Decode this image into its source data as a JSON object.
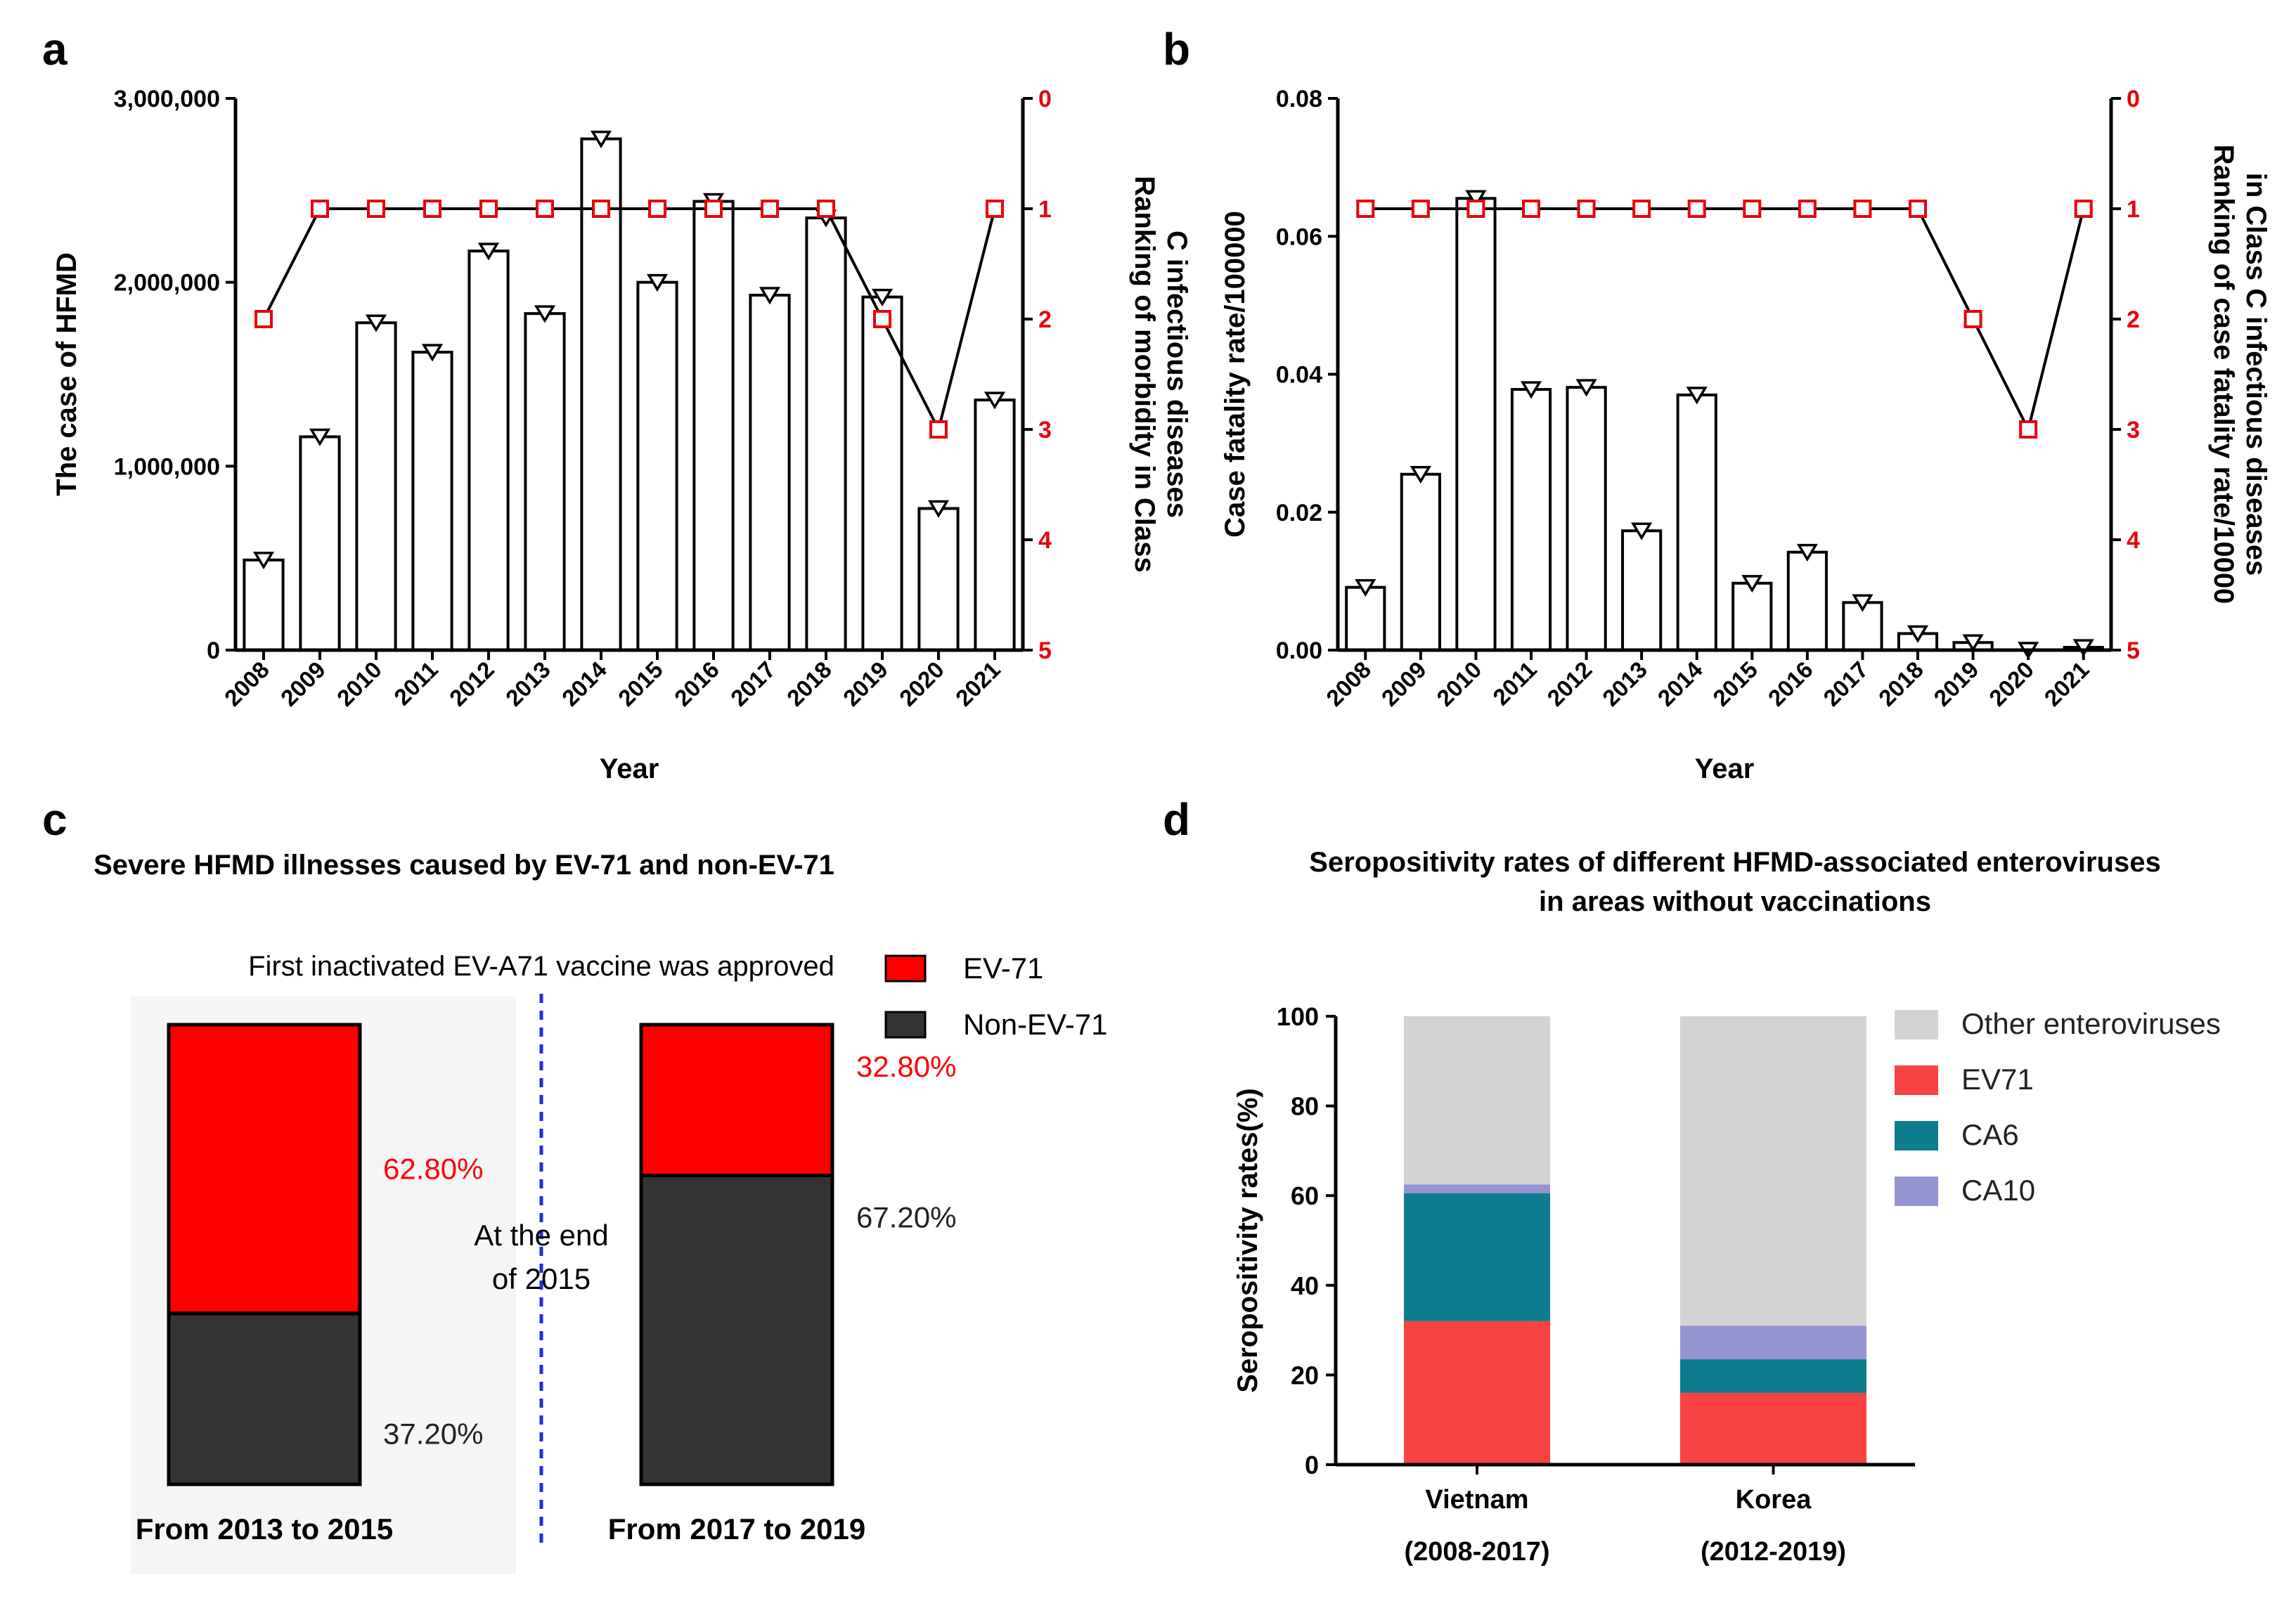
{
  "panel_letters": [
    "a",
    "b",
    "c",
    "d"
  ],
  "colors": {
    "black": "#000000",
    "rank_red": "#e8000b",
    "ev71_c": "#fe0000",
    "non_ev71_c": "#333333",
    "panel_c_bg": "#f5f5f5",
    "divider_blue": "#1f2be6",
    "d_other": "#d3d3d3",
    "d_ev71": "#f94242",
    "d_ca6": "#0d7c8f",
    "d_ca10": "#9494d3"
  },
  "chart_data": [
    {
      "id": "a",
      "type": "bar",
      "categories": [
        "2008",
        "2009",
        "2010",
        "2011",
        "2012",
        "2013",
        "2014",
        "2015",
        "2016",
        "2017",
        "2018",
        "2019",
        "2020",
        "2021"
      ],
      "series": [
        {
          "name": "The case of HFMD",
          "type": "bar",
          "axis": "left",
          "values": [
            490000,
            1160000,
            1780000,
            1620000,
            2170000,
            1830000,
            2780000,
            2000000,
            2440000,
            1930000,
            2350000,
            1920000,
            770000,
            1360000
          ]
        },
        {
          "name": "Ranking of morbidity in Class C infectious diseases",
          "type": "line",
          "axis": "right",
          "values": [
            2,
            1,
            1,
            1,
            1,
            1,
            1,
            1,
            1,
            1,
            1,
            2,
            3,
            1
          ]
        }
      ],
      "xlabel": "Year",
      "ylabel": "The case of HFMD",
      "ylabel_right": [
        "Ranking of morbidity in Class",
        "C infectious diseases"
      ],
      "ylim": [
        0,
        3000000
      ],
      "ylim_right": [
        0,
        5
      ],
      "yticks": [
        0,
        1000000,
        2000000,
        3000000
      ],
      "ytick_labels": [
        "0",
        "1,000,000",
        "2,000,000",
        "3,000,000"
      ],
      "yticks_right": [
        "0",
        "1",
        "2",
        "3",
        "4",
        "5"
      ]
    },
    {
      "id": "b",
      "type": "bar",
      "categories": [
        "2008",
        "2009",
        "2010",
        "2011",
        "2012",
        "2013",
        "2014",
        "2015",
        "2016",
        "2017",
        "2018",
        "2019",
        "2020",
        "2021"
      ],
      "series": [
        {
          "name": "Case fatality rate/100000",
          "type": "bar",
          "axis": "left",
          "values": [
            0.0091,
            0.0255,
            0.0655,
            0.0378,
            0.0381,
            0.0173,
            0.037,
            0.0097,
            0.0142,
            0.0069,
            0.0024,
            0.0011,
            0.0,
            0.0004
          ]
        },
        {
          "name": "Ranking of case fatality rate/10000 in Class C infectious diseases",
          "type": "line",
          "axis": "right",
          "values": [
            1,
            1,
            1,
            1,
            1,
            1,
            1,
            1,
            1,
            1,
            1,
            2,
            3,
            1
          ]
        }
      ],
      "xlabel": "Year",
      "ylabel": "Case fatality rate/100000",
      "ylabel_right": [
        "Ranking of case fatality rate/10000",
        "in Class C infectious diseases"
      ],
      "ylim": [
        0,
        0.08
      ],
      "ylim_right": [
        0,
        5
      ],
      "yticks": [
        0,
        0.02,
        0.04,
        0.06,
        0.08
      ],
      "ytick_labels": [
        "0.00",
        "0.02",
        "0.04",
        "0.06",
        "0.08"
      ],
      "yticks_right": [
        "0",
        "1",
        "2",
        "3",
        "4",
        "5"
      ]
    },
    {
      "id": "c",
      "type": "bar",
      "stacked": true,
      "title": "Severe HFMD illnesses caused by EV-71 and non-EV-71",
      "categories": [
        "From 2013 to 2015",
        "From 2017 to 2019"
      ],
      "series": [
        {
          "name": "Non-EV-71",
          "values": [
            37.2,
            67.2
          ],
          "labels": [
            "37.20%",
            "67.20%"
          ]
        },
        {
          "name": "EV-71",
          "values": [
            62.8,
            32.8
          ],
          "labels": [
            "62.80%",
            "32.80%"
          ]
        }
      ],
      "ylim": [
        0,
        100
      ],
      "annotations": [
        "First inactivated EV-A71 vaccine was approved",
        "At the end",
        "of 2015"
      ]
    },
    {
      "id": "d",
      "type": "bar",
      "stacked": true,
      "title": [
        "Seropositivity rates of different HFMD-associated enteroviruses",
        "in areas without vaccinations"
      ],
      "categories": [
        [
          "Vietnam",
          "(2008-2017)"
        ],
        [
          "Korea",
          "(2012-2019)"
        ]
      ],
      "series": [
        {
          "name": "EV71",
          "values": [
            32,
            16
          ]
        },
        {
          "name": "CA6",
          "values": [
            28.5,
            7.5
          ]
        },
        {
          "name": "CA10",
          "values": [
            2,
            7.5
          ]
        },
        {
          "name": "Other enteroviruses",
          "values": [
            37.5,
            69
          ]
        }
      ],
      "legend_order": [
        "Other enteroviruses",
        "EV71",
        "CA6",
        "CA10"
      ],
      "ylabel": "Seropositivity rates(%)",
      "ylim": [
        0,
        100
      ],
      "yticks": [
        "0",
        "20",
        "40",
        "60",
        "80",
        "100"
      ]
    }
  ]
}
